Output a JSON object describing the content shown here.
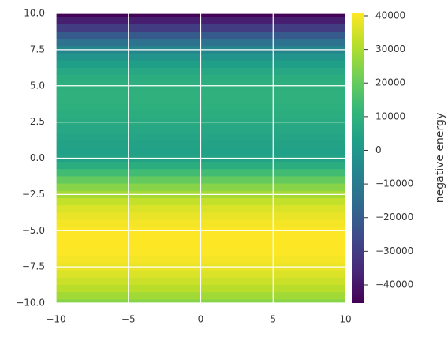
{
  "chart_data": {
    "type": "heatmap",
    "colormap": "viridis",
    "grid": true,
    "xlim": [
      -10,
      10
    ],
    "ylim": [
      -10,
      10
    ],
    "xticks": [
      {
        "value": -10,
        "label": "−10"
      },
      {
        "value": -5,
        "label": "−5"
      },
      0,
      5,
      10
    ],
    "yticks": [
      {
        "value": -10,
        "label": "−10.0"
      },
      {
        "value": -7.5,
        "label": "−7.5"
      },
      {
        "value": -5,
        "label": "−5.0"
      },
      {
        "value": -2.5,
        "label": "−2.5"
      },
      {
        "value": 0,
        "label": "0.0"
      },
      {
        "value": 2.5,
        "label": "2.5"
      },
      {
        "value": 5,
        "label": "5.0"
      },
      {
        "value": 7.5,
        "label": "7.5"
      },
      {
        "value": 10,
        "label": "10.0"
      }
    ],
    "y": [
      10,
      9.5,
      9,
      8.5,
      8,
      7.5,
      7,
      6.5,
      6,
      5.5,
      5,
      4.5,
      4,
      3.5,
      3,
      2.5,
      2,
      1.5,
      1,
      0.5,
      0,
      -0.5,
      -1,
      -1.5,
      -2,
      -2.5,
      -3,
      -3.5,
      -4,
      -4.5,
      -5,
      -5.5,
      -6,
      -6.5,
      -7,
      -7.5,
      -8,
      -8.5,
      -9,
      -9.5,
      -10
    ],
    "values": [
      -45000,
      -38000,
      -30000,
      -21000,
      -13000,
      -6000,
      -1000,
      3000,
      6000,
      8000,
      9000,
      9500,
      9500,
      9000,
      8000,
      7000,
      6000,
      5000,
      4000,
      3500,
      4000,
      8000,
      14000,
      20000,
      25000,
      29000,
      33000,
      36000,
      38000,
      39500,
      40500,
      40700,
      40700,
      40500,
      39500,
      38000,
      36000,
      34000,
      31500,
      28500,
      25000
    ],
    "colorbar": {
      "label": "negative energy",
      "lim": [
        -45400,
        40700
      ],
      "ticks": [
        {
          "value": -40000,
          "label": "−40000"
        },
        {
          "value": -30000,
          "label": "−30000"
        },
        {
          "value": -20000,
          "label": "−20000"
        },
        {
          "value": -10000,
          "label": "−10000"
        },
        0,
        10000,
        20000,
        30000,
        40000
      ]
    }
  }
}
